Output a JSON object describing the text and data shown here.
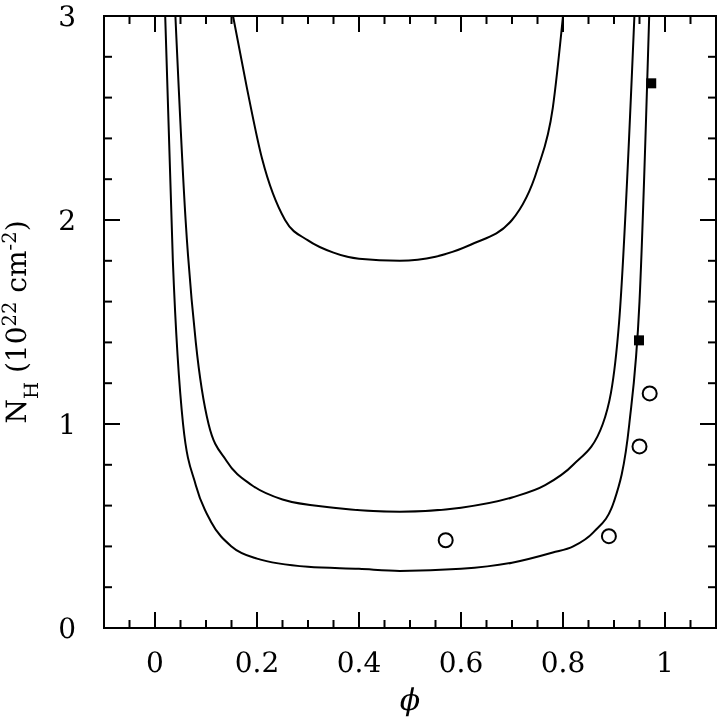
{
  "chart_data": {
    "type": "line",
    "xlabel": "ϕ",
    "ylabel": "N$_{H}$ (10$^{22}$ cm$^{-2}$)",
    "xlim": [
      -0.1,
      1.1
    ],
    "ylim": [
      0,
      3
    ],
    "xticks": [
      {
        "value": -0.05,
        "label": null
      },
      0,
      {
        "value": 0.05,
        "label": null
      },
      {
        "value": 0.1,
        "label": null
      },
      {
        "value": 0.15,
        "label": null
      },
      0.2,
      {
        "value": 0.25,
        "label": null
      },
      {
        "value": 0.3,
        "label": null
      },
      {
        "value": 0.35,
        "label": null
      },
      0.4,
      {
        "value": 0.45,
        "label": null
      },
      {
        "value": 0.5,
        "label": null
      },
      {
        "value": 0.55,
        "label": null
      },
      0.6,
      {
        "value": 0.65,
        "label": null
      },
      {
        "value": 0.7,
        "label": null
      },
      {
        "value": 0.75,
        "label": null
      },
      0.8,
      {
        "value": 0.85,
        "label": null
      },
      {
        "value": 0.9,
        "label": null
      },
      {
        "value": 0.95,
        "label": null
      },
      1,
      {
        "value": 1.05,
        "label": null
      }
    ],
    "yticks": [
      0,
      {
        "value": 0.2,
        "label": null
      },
      {
        "value": 0.4,
        "label": null
      },
      {
        "value": 0.6,
        "label": null
      },
      {
        "value": 0.8,
        "label": null
      },
      1,
      {
        "value": 1.2,
        "label": null
      },
      {
        "value": 1.4,
        "label": null
      },
      {
        "value": 1.6,
        "label": null
      },
      {
        "value": 1.8,
        "label": null
      },
      2,
      {
        "value": 2.2,
        "label": null
      },
      {
        "value": 2.4,
        "label": null
      },
      {
        "value": 2.6,
        "label": null
      },
      {
        "value": 2.8,
        "label": null
      },
      3
    ],
    "grid": false,
    "series": [
      {
        "color": "#000000",
        "marker": "none",
        "x": [
          0.02,
          0.035,
          0.055,
          0.08,
          0.11,
          0.15,
          0.2,
          0.3,
          0.4,
          0.48,
          0.6,
          0.7,
          0.78,
          0.82,
          0.86,
          0.9,
          0.93,
          0.95,
          0.969
        ],
        "values": [
          3,
          1.8,
          1.0,
          0.7,
          0.52,
          0.4,
          0.34,
          0.3,
          0.29,
          0.28,
          0.29,
          0.32,
          0.37,
          0.4,
          0.47,
          0.62,
          1.0,
          1.6,
          3
        ]
      },
      {
        "color": "#000000",
        "marker": "none",
        "x": [
          0.04,
          0.06,
          0.08,
          0.105,
          0.14,
          0.19,
          0.25,
          0.35,
          0.48,
          0.6,
          0.7,
          0.765,
          0.82,
          0.878,
          0.91,
          0.94
        ],
        "values": [
          3,
          2.0,
          1.4,
          1.0,
          0.82,
          0.7,
          0.63,
          0.59,
          0.57,
          0.59,
          0.64,
          0.7,
          0.8,
          1.0,
          1.5,
          3
        ]
      },
      {
        "color": "#000000",
        "marker": "none",
        "x": [
          0.153,
          0.18,
          0.21,
          0.255,
          0.3,
          0.35,
          0.4,
          0.48,
          0.55,
          0.62,
          0.7,
          0.75,
          0.78,
          0.8
        ],
        "values": [
          3,
          2.65,
          2.3,
          2.0,
          1.9,
          1.84,
          1.81,
          1.8,
          1.82,
          1.88,
          2.0,
          2.25,
          2.55,
          3
        ]
      },
      {
        "type": "scatter",
        "color": "#000000",
        "marker": "circle",
        "x": [
          0.57,
          0.89,
          0.95,
          0.97
        ],
        "values": [
          0.43,
          0.45,
          0.89,
          1.15
        ]
      },
      {
        "type": "scatter",
        "color": "#000000",
        "marker": "square",
        "x": [
          0.973,
          0.949
        ],
        "values": [
          2.67,
          1.41
        ]
      }
    ]
  }
}
